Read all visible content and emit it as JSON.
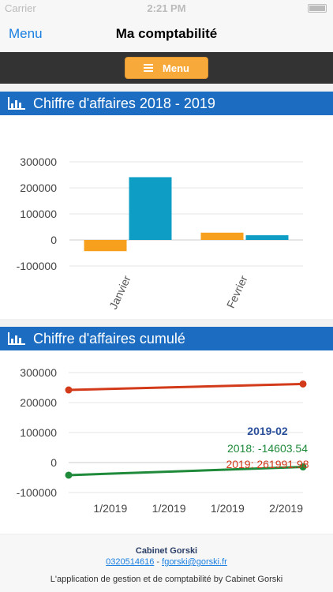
{
  "status_bar": {
    "carrier": "Carrier",
    "time": "2:21 PM"
  },
  "nav": {
    "back_label": "Menu",
    "title": "Ma comptabilité"
  },
  "menu_button": {
    "label": "Menu"
  },
  "chart1": {
    "title": "Chiffre d'affaires 2018 - 2019",
    "chart_data": {
      "type": "bar",
      "categories": [
        "Janvier",
        "Fevrier"
      ],
      "series": [
        {
          "values": [
            -43000,
            28000
          ],
          "color": "#f7a01d"
        },
        {
          "values": [
            241000,
            18000
          ],
          "color": "#0e9dc5"
        }
      ],
      "yticks": [
        "300000",
        "200000",
        "100000",
        "0",
        "-100000"
      ],
      "ylim": [
        -100000,
        300000
      ]
    }
  },
  "chart2": {
    "title": "Chiffre d'affaires cumulé",
    "chart_data": {
      "type": "line",
      "x": [
        "1/2019",
        "2/2019"
      ],
      "xticks": [
        "1/2019",
        "1/2019",
        "1/2019",
        "2/2019"
      ],
      "yticks": [
        "300000",
        "200000",
        "100000",
        "0",
        "-100000"
      ],
      "ylim": [
        -100000,
        300000
      ],
      "series": [
        {
          "name": "2018",
          "values": [
            -42000,
            -14603.54
          ],
          "color": "#1e8a3a"
        },
        {
          "name": "2019",
          "values": [
            242000,
            261991.98
          ],
          "color": "#d23a1a"
        }
      ],
      "tooltip": {
        "header": "2019-02",
        "line_2018": "2018: -14603.54",
        "line_2019": "2019: 261991.98"
      }
    }
  },
  "footer": {
    "company": "Cabinet Gorski",
    "phone": "0320514616",
    "separator": "-",
    "email": "fgorski@gorski.fr",
    "tagline": "L'application de gestion et de comptabilité by Cabinet Gorski"
  }
}
